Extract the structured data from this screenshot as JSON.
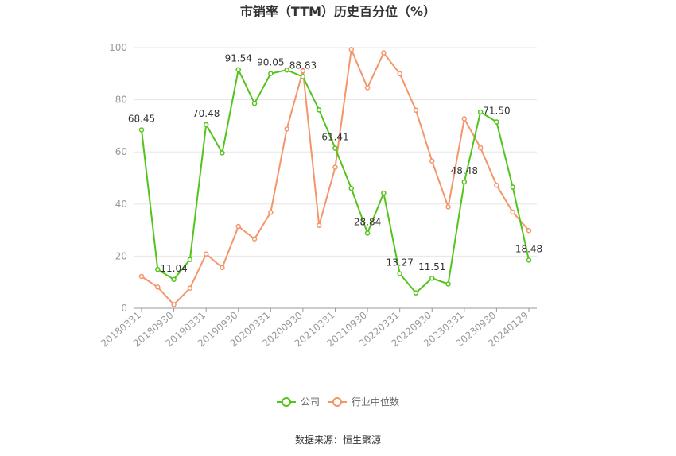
{
  "chart_data": {
    "type": "line",
    "title": "市销率（TTM）历史百分位（%）",
    "ylim": [
      0,
      100
    ],
    "yticks": [
      0,
      20,
      40,
      60,
      80,
      100
    ],
    "x": [
      "20180331",
      "20180630",
      "20180930",
      "20181231",
      "20190331",
      "20190630",
      "20190930",
      "20191231",
      "20200331",
      "20200630",
      "20200930",
      "20201231",
      "20210331",
      "20210630",
      "20210930",
      "20211231",
      "20220331",
      "20220630",
      "20220930",
      "20221231",
      "20230331",
      "20230630",
      "20230930",
      "20231231",
      "20240129"
    ],
    "xtick_labels": [
      "20180331",
      "20180930",
      "20190331",
      "20190930",
      "20200331",
      "20200930",
      "20210331",
      "20210930",
      "20220331",
      "20220930",
      "20230331",
      "20230930",
      "20240129"
    ],
    "grid": true,
    "legend_position": "bottom",
    "series": [
      {
        "name": "公司",
        "color": "#52c41a",
        "values": [
          68.45,
          14.9,
          11.04,
          18.7,
          70.48,
          59.6,
          91.54,
          78.6,
          90.05,
          91.4,
          88.83,
          76.1,
          61.41,
          46.0,
          28.84,
          44.2,
          13.27,
          5.9,
          11.51,
          9.3,
          48.48,
          75.3,
          71.5,
          46.5,
          18.48
        ],
        "labels": {
          "0": "68.45",
          "2": "11.04",
          "4": "70.48",
          "6": "91.54",
          "8": "90.05",
          "10": "88.83",
          "12": "61.41",
          "14": "28.84",
          "16": "13.27",
          "18": "11.51",
          "20": "48.48",
          "22": "71.50",
          "24": "18.48"
        }
      },
      {
        "name": "行业中位数",
        "color": "#f4956a",
        "values": [
          12.2,
          8.1,
          1.4,
          7.7,
          20.8,
          15.6,
          31.4,
          26.6,
          36.8,
          68.8,
          91.1,
          31.8,
          54.1,
          99.3,
          84.6,
          98.0,
          90.0,
          76.0,
          56.5,
          38.9,
          72.7,
          61.6,
          47.2,
          36.9,
          29.8
        ]
      }
    ]
  },
  "footer": {
    "source": "数据来源：恒生聚源"
  }
}
